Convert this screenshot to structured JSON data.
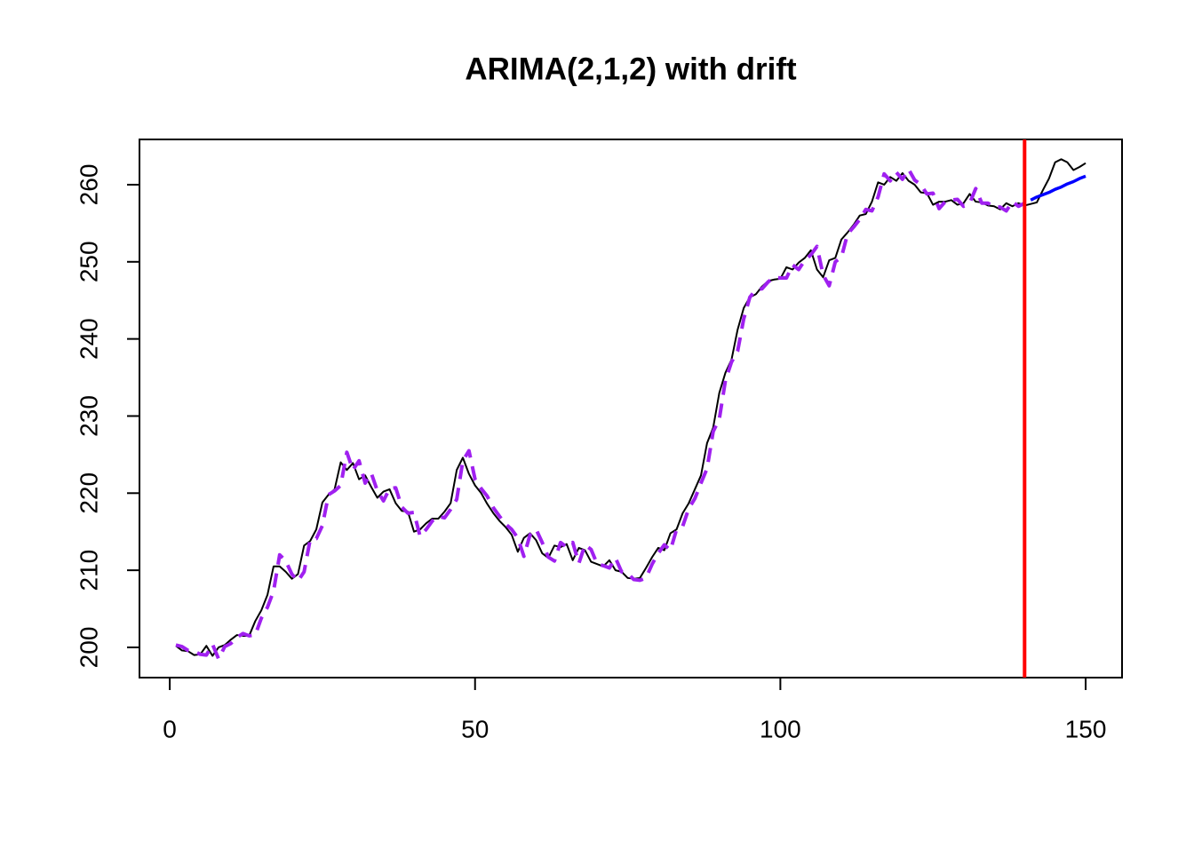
{
  "chart_data": {
    "type": "line",
    "title": "ARIMA(2,1,2) with drift",
    "xlim": [
      -4.96,
      155.96
    ],
    "ylim": [
      196.08,
      265.87
    ],
    "xticks": [
      0,
      50,
      100,
      150
    ],
    "yticks": [
      200,
      210,
      220,
      230,
      240,
      250,
      260
    ],
    "vline": {
      "x": 140,
      "color": "#ff0000"
    },
    "series": [
      {
        "color": "#000000",
        "dash": "solid",
        "width": 2,
        "x": [
          1,
          2,
          3,
          4,
          5,
          6,
          7,
          8,
          9,
          10,
          11,
          12,
          13,
          14,
          15,
          16,
          17,
          18,
          19,
          20,
          21,
          22,
          23,
          24,
          25,
          26,
          27,
          28,
          29,
          30,
          31,
          32,
          33,
          34,
          35,
          36,
          37,
          38,
          39,
          40,
          41,
          42,
          43,
          44,
          45,
          46,
          47,
          48,
          49,
          50,
          51,
          52,
          53,
          54,
          55,
          56,
          57,
          58,
          59,
          60,
          61,
          62,
          63,
          64,
          65,
          66,
          67,
          68,
          69,
          70,
          71,
          72,
          73,
          74,
          75,
          76,
          77,
          78,
          79,
          80,
          81,
          82,
          83,
          84,
          85,
          86,
          87,
          88,
          89,
          90,
          91,
          92,
          93,
          94,
          95,
          96,
          97,
          98,
          99,
          100,
          101,
          102,
          103,
          104,
          105,
          106,
          107,
          108,
          109,
          110,
          111,
          112,
          113,
          114,
          115,
          116,
          117,
          118,
          119,
          120,
          121,
          122,
          123,
          124,
          125,
          126,
          127,
          128,
          129,
          130,
          131,
          132,
          133,
          134,
          135,
          136,
          137,
          138,
          139,
          140,
          141,
          142,
          143,
          144,
          145,
          146,
          147,
          148,
          149,
          150
        ],
        "values": [
          200.2,
          199.6,
          199.5,
          199.0,
          199.1,
          200.2,
          198.9,
          200.0,
          200.3,
          201.0,
          201.6,
          201.5,
          201.5,
          203.4,
          204.8,
          206.8,
          210.5,
          210.5,
          209.8,
          208.9,
          209.5,
          213.2,
          213.8,
          215.3,
          218.8,
          219.8,
          220.5,
          224.0,
          223.0,
          223.9,
          221.8,
          222.3,
          220.8,
          219.4,
          220.2,
          220.5,
          218.7,
          217.7,
          217.6,
          215.0,
          215.3,
          216.1,
          216.7,
          216.7,
          217.6,
          218.7,
          223.0,
          224.6,
          222.5,
          221.0,
          220.0,
          218.6,
          217.4,
          216.4,
          215.6,
          214.6,
          212.4,
          214.2,
          214.8,
          213.9,
          212.2,
          211.6,
          213.2,
          213.0,
          213.4,
          211.3,
          212.9,
          212.6,
          211.1,
          210.8,
          210.5,
          211.3,
          210.0,
          209.8,
          209.0,
          208.9,
          209.0,
          210.3,
          211.7,
          212.9,
          212.6,
          214.8,
          215.3,
          217.4,
          218.7,
          220.5,
          222.3,
          226.5,
          228.5,
          233.0,
          235.6,
          237.3,
          241.2,
          244.0,
          245.4,
          245.8,
          246.8,
          247.5,
          247.7,
          247.8,
          249.3,
          249.0,
          249.9,
          250.5,
          251.5,
          249.0,
          248.0,
          250.2,
          250.5,
          252.9,
          253.8,
          254.8,
          256.0,
          256.2,
          257.8,
          260.3,
          260.0,
          261.0,
          260.5,
          261.5,
          260.5,
          260.0,
          259.0,
          258.9,
          257.4,
          257.8,
          257.8,
          258.0,
          257.4,
          257.6,
          258.8,
          257.8,
          257.7,
          257.3,
          257.2,
          256.8,
          257.6,
          257.2,
          257.6,
          257.3,
          257.5,
          257.7,
          259.3,
          260.8,
          262.9,
          263.3,
          262.9,
          261.9,
          262.3,
          262.8
        ]
      },
      {
        "color": "#a020f0",
        "dash": "dashed",
        "width": 4,
        "x": [
          1,
          2,
          3,
          4,
          5,
          6,
          7,
          8,
          9,
          10,
          11,
          12,
          13,
          14,
          15,
          16,
          17,
          18,
          19,
          20,
          21,
          22,
          23,
          24,
          25,
          26,
          27,
          28,
          29,
          30,
          31,
          32,
          33,
          34,
          35,
          36,
          37,
          38,
          39,
          40,
          41,
          42,
          43,
          44,
          45,
          46,
          47,
          48,
          49,
          50,
          51,
          52,
          53,
          54,
          55,
          56,
          57,
          58,
          59,
          60,
          61,
          62,
          63,
          64,
          65,
          66,
          67,
          68,
          69,
          70,
          71,
          72,
          73,
          74,
          75,
          76,
          77,
          78,
          79,
          80,
          81,
          82,
          83,
          84,
          85,
          86,
          87,
          88,
          89,
          90,
          91,
          92,
          93,
          94,
          95,
          96,
          97,
          98,
          99,
          100,
          101,
          102,
          103,
          104,
          105,
          106,
          107,
          108,
          109,
          110,
          111,
          112,
          113,
          114,
          115,
          116,
          117,
          118,
          119,
          120,
          121,
          122,
          123,
          124,
          125,
          126,
          127,
          128,
          129,
          130,
          131,
          132,
          133,
          134,
          135,
          136,
          137,
          138,
          139,
          140
        ],
        "values": [
          200.3,
          200.1,
          199.6,
          199.5,
          199.1,
          199.0,
          200.4,
          198.5,
          200.1,
          200.5,
          201.3,
          201.8,
          201.5,
          201.6,
          203.8,
          205.2,
          207.3,
          212.0,
          211.2,
          209.5,
          208.6,
          209.8,
          214.0,
          214.1,
          215.8,
          219.8,
          220.3,
          221.0,
          225.3,
          223.0,
          224.2,
          221.3,
          222.6,
          220.3,
          219.0,
          220.6,
          220.7,
          218.2,
          217.4,
          217.5,
          214.4,
          215.3,
          216.4,
          217.0,
          216.8,
          217.9,
          219.2,
          224.2,
          225.5,
          221.8,
          220.6,
          219.6,
          218.1,
          217.0,
          216.0,
          215.3,
          214.2,
          211.8,
          214.6,
          215.3,
          213.6,
          211.7,
          211.2,
          213.6,
          213.0,
          213.6,
          210.9,
          213.3,
          212.7,
          210.8,
          210.6,
          210.3,
          211.6,
          209.8,
          209.6,
          208.8,
          208.7,
          209.0,
          210.8,
          212.2,
          213.3,
          212.6,
          215.3,
          215.7,
          218.0,
          219.3,
          221.3,
          223.2,
          228.0,
          229.6,
          234.6,
          237.0,
          238.4,
          242.6,
          245.4,
          246.4,
          246.5,
          247.4,
          248.0,
          247.9,
          247.9,
          249.6,
          249.0,
          250.2,
          250.9,
          252.0,
          248.3,
          246.9,
          250.0,
          250.6,
          253.6,
          254.5,
          255.5,
          256.8,
          256.6,
          258.4,
          261.4,
          260.5,
          261.6,
          260.7,
          262.0,
          260.6,
          260.0,
          258.8,
          258.9,
          256.9,
          257.8,
          258.0,
          258.1,
          257.2,
          257.6,
          259.5,
          257.6,
          257.6,
          257.1,
          257.1,
          256.6,
          257.8,
          257.2,
          257.6
        ]
      },
      {
        "color": "#0000ff",
        "dash": "solid",
        "width": 3.5,
        "x": [
          141,
          142,
          143,
          144,
          145,
          146,
          147,
          148,
          149,
          150
        ],
        "values": [
          258.0,
          258.4,
          258.7,
          259.0,
          259.4,
          259.7,
          260.1,
          260.4,
          260.8,
          261.1
        ]
      }
    ]
  }
}
